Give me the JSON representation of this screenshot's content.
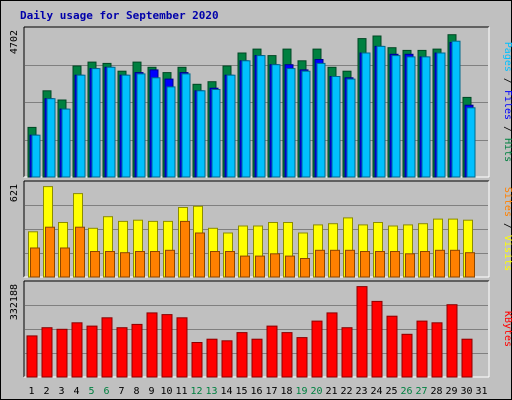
{
  "chart_data": {
    "type": "bar",
    "title": "Daily usage for September 2020",
    "categories": [
      "1",
      "2",
      "3",
      "4",
      "5",
      "6",
      "7",
      "8",
      "9",
      "10",
      "11",
      "12",
      "13",
      "14",
      "15",
      "16",
      "17",
      "18",
      "19",
      "20",
      "21",
      "22",
      "23",
      "24",
      "25",
      "26",
      "27",
      "28",
      "29",
      "30",
      "31"
    ],
    "weekend_days": [
      "5",
      "6",
      "12",
      "13",
      "19",
      "20",
      "26",
      "27"
    ],
    "panels": [
      {
        "id": "hits",
        "scale_max": 4702,
        "ylabel_parts": [
          {
            "text": "Pages",
            "color": "#00c0ff"
          },
          {
            "text": " / ",
            "color": "#000000"
          },
          {
            "text": "Files",
            "color": "#0000ff"
          },
          {
            "text": " / ",
            "color": "#000000"
          },
          {
            "text": "Hits",
            "color": "#008040"
          }
        ],
        "series": [
          {
            "name": "Hits",
            "color": "#008040",
            "values": [
              1900,
              3300,
              2950,
              4250,
              4400,
              4350,
              4050,
              4400,
              4200,
              4000,
              4200,
              3550,
              3650,
              4250,
              4750,
              4900,
              4650,
              4900,
              4450,
              4900,
              4200,
              4050,
              5300,
              5400,
              4950,
              4850,
              4850,
              4900,
              5450,
              3050,
              0
            ]
          },
          {
            "name": "Files",
            "color": "#0000ff",
            "values": [
              1600,
              3000,
              2600,
              3900,
              4150,
              4200,
              3900,
              4000,
              4100,
              3750,
              4000,
              3300,
              3400,
              3900,
              4450,
              4650,
              4300,
              4300,
              4100,
              4500,
              3850,
              3800,
              4750,
              5000,
              4700,
              4700,
              4600,
              4750,
              5150,
              2750,
              0
            ]
          },
          {
            "name": "Pages",
            "color": "#00c0ff",
            "values": [
              1600,
              3000,
              2600,
              3900,
              4150,
              4200,
              3900,
              3950,
              3800,
              3450,
              3950,
              3300,
              3350,
              3900,
              4450,
              4650,
              4300,
              4150,
              4050,
              4350,
              3850,
              3750,
              4750,
              5000,
              4650,
              4600,
              4600,
              4750,
              5200,
              2650,
              0
            ]
          }
        ]
      },
      {
        "id": "visits",
        "scale_max": 621,
        "ylabel_parts": [
          {
            "text": "Sites",
            "color": "#ff8000"
          },
          {
            "text": " / ",
            "color": "#000000"
          },
          {
            "text": "Visits",
            "color": "#ffff00"
          }
        ],
        "series": [
          {
            "name": "Visits",
            "color": "#ffff00",
            "values": [
              390,
              780,
              470,
              720,
              420,
              520,
              480,
              490,
              480,
              480,
              600,
              610,
              420,
              380,
              440,
              440,
              470,
              470,
              380,
              450,
              460,
              510,
              450,
              470,
              440,
              450,
              460,
              500,
              500,
              490,
              0
            ]
          },
          {
            "name": "Sites",
            "color": "#ff8000",
            "values": [
              250,
              430,
              250,
              430,
              220,
              220,
              210,
              220,
              220,
              230,
              480,
              380,
              220,
              220,
              180,
              180,
              200,
              180,
              160,
              230,
              230,
              230,
              220,
              220,
              220,
              200,
              220,
              230,
              230,
              210,
              0
            ]
          }
        ]
      },
      {
        "id": "kbytes",
        "scale_max": 332188,
        "ylabel_parts": [
          {
            "text": "KBytes",
            "color": "#ff0000"
          }
        ],
        "series": [
          {
            "name": "KBytes",
            "color": "#ff0000",
            "values": [
              250000,
              300000,
              290000,
              330000,
              310000,
              360000,
              300000,
              320000,
              390000,
              380000,
              360000,
              210000,
              230000,
              220000,
              270000,
              230000,
              310000,
              270000,
              240000,
              340000,
              390000,
              300000,
              550000,
              460000,
              370000,
              260000,
              340000,
              330000,
              440000,
              230000,
              0
            ]
          }
        ]
      }
    ]
  }
}
